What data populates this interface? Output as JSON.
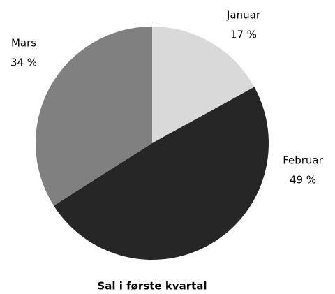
{
  "chart_data": {
    "type": "pie",
    "title": "Sal i første kvartal",
    "categories": [
      "Januar",
      "Februar",
      "Mars"
    ],
    "values": [
      17,
      49,
      34
    ],
    "value_labels": [
      "17 %",
      "49 %",
      "34 %"
    ],
    "colors": [
      "#d9d9d9",
      "#262626",
      "#808080"
    ]
  }
}
